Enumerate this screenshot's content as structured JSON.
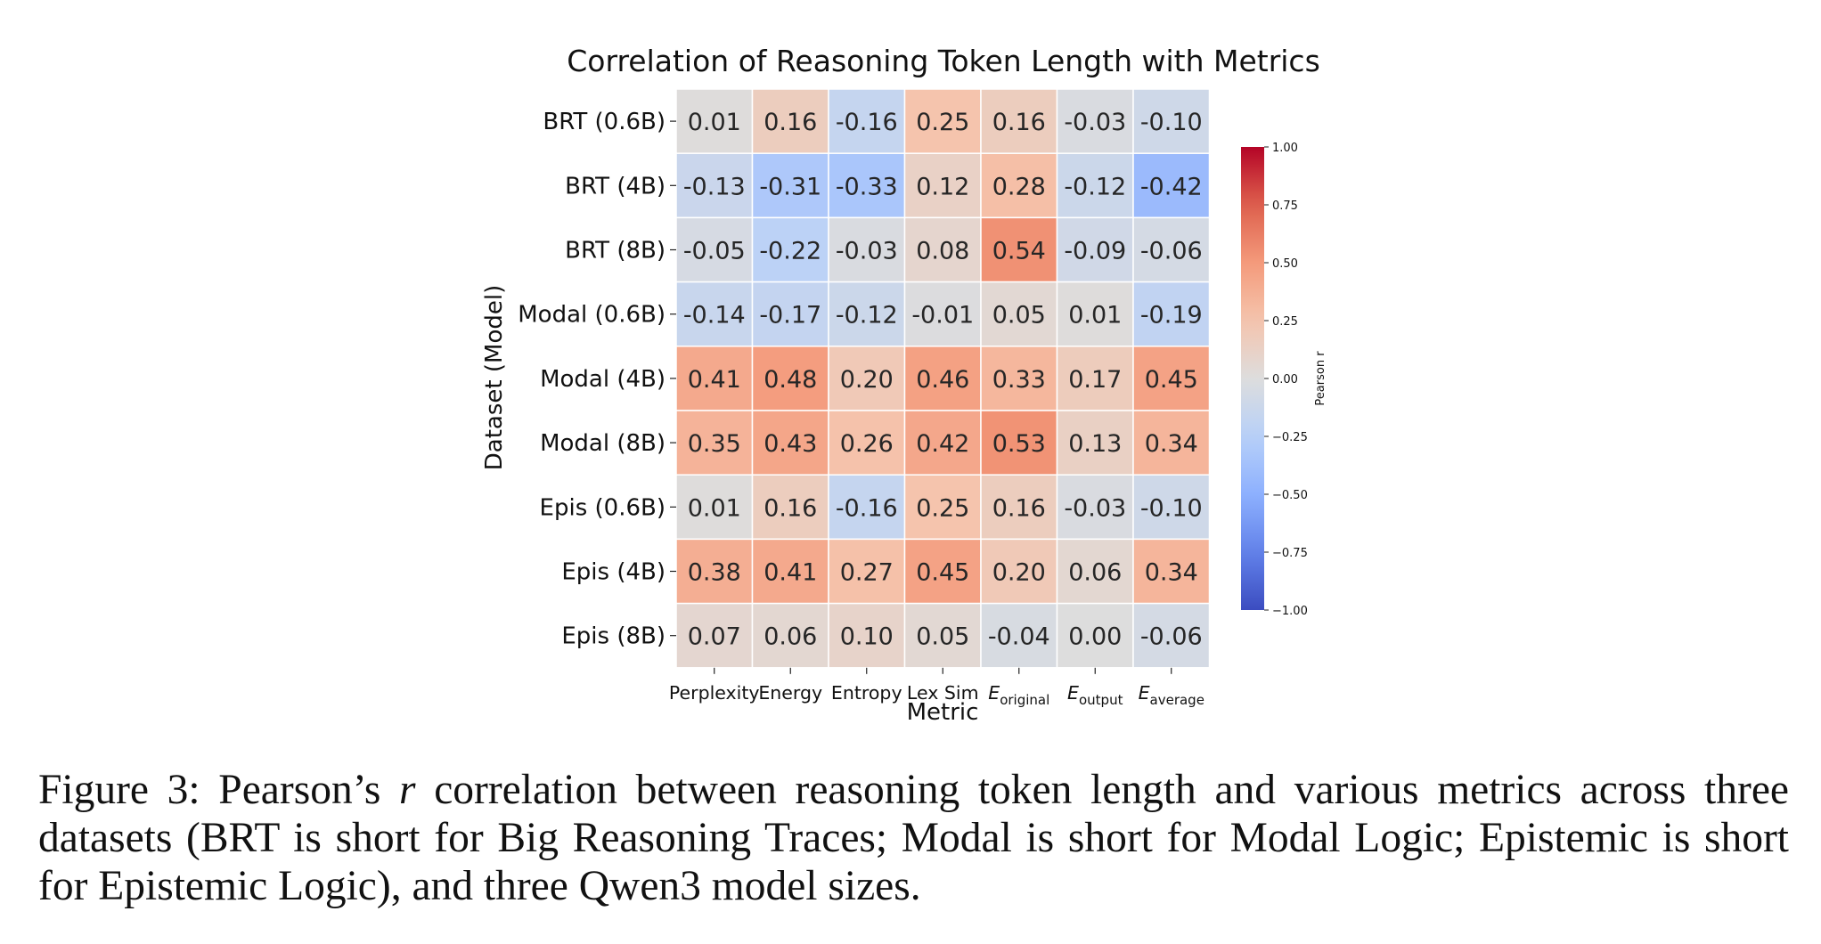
{
  "chart_data": {
    "type": "heatmap",
    "title": "Correlation of Reasoning Token Length with Metrics",
    "xlabel": "Metric",
    "ylabel": "Dataset (Model)",
    "x_categories": [
      {
        "base": "Perplexity",
        "sub": ""
      },
      {
        "base": "Energy",
        "sub": ""
      },
      {
        "base": "Entropy",
        "sub": ""
      },
      {
        "base": "Lex Sim",
        "sub": ""
      },
      {
        "base": "E",
        "sub": "original"
      },
      {
        "base": "E",
        "sub": "output"
      },
      {
        "base": "E",
        "sub": "average"
      }
    ],
    "y_categories": [
      "BRT (0.6B)",
      "BRT (4B)",
      "BRT (8B)",
      "Modal (0.6B)",
      "Modal (4B)",
      "Modal (8B)",
      "Epis (0.6B)",
      "Epis (4B)",
      "Epis (8B)"
    ],
    "values": [
      [
        0.01,
        0.16,
        -0.16,
        0.25,
        0.16,
        -0.03,
        -0.1
      ],
      [
        -0.13,
        -0.31,
        -0.33,
        0.12,
        0.28,
        -0.12,
        -0.42
      ],
      [
        -0.05,
        -0.22,
        -0.03,
        0.08,
        0.54,
        -0.09,
        -0.06
      ],
      [
        -0.14,
        -0.17,
        -0.12,
        -0.01,
        0.05,
        0.01,
        -0.19
      ],
      [
        0.41,
        0.48,
        0.2,
        0.46,
        0.33,
        0.17,
        0.45
      ],
      [
        0.35,
        0.43,
        0.26,
        0.42,
        0.53,
        0.13,
        0.34
      ],
      [
        0.01,
        0.16,
        -0.16,
        0.25,
        0.16,
        -0.03,
        -0.1
      ],
      [
        0.38,
        0.41,
        0.27,
        0.45,
        0.2,
        0.06,
        0.34
      ],
      [
        0.07,
        0.06,
        0.1,
        0.05,
        -0.04,
        0.0,
        -0.06
      ]
    ],
    "colormap": "coolwarm",
    "vmin": -1.0,
    "vmax": 1.0,
    "colorbar_label": "Pearson r",
    "colorbar_ticks": [
      "1.00",
      "0.75",
      "0.50",
      "0.25",
      "0.00",
      "−0.25",
      "−0.50",
      "−0.75",
      "−1.00"
    ],
    "colorbar_tick_values": [
      1.0,
      0.75,
      0.5,
      0.25,
      0.0,
      -0.25,
      -0.5,
      -0.75,
      -1.0
    ],
    "colors": {
      "low": "#3b4cc0",
      "mid": "#dddddd",
      "high": "#b40426",
      "text_dark": "#262626",
      "text_light": "#ffffff",
      "cell_border": "#ffffff"
    }
  },
  "caption": {
    "label": "Figure 3:",
    "text_before": " Pearson’s ",
    "symbol": "r",
    "text_after": " correlation between reasoning token length and various metrics across three datasets (BRT is short for Big Reasoning Traces; Modal is short for Modal Logic; Epistemic is short for Epistemic Logic), and three Qwen3 model sizes."
  }
}
